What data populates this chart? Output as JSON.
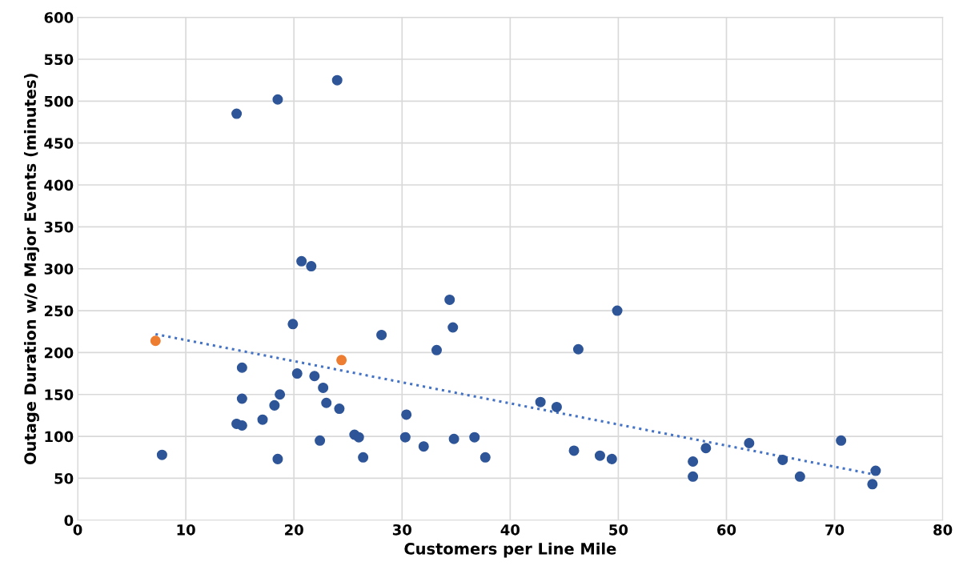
{
  "chart_data": {
    "type": "scatter",
    "xlabel": "Customers per Line Mile",
    "ylabel": "Outage Duration w/o Major Events (minutes)",
    "xlim": [
      0,
      80
    ],
    "xticks": [
      0,
      10,
      20,
      30,
      40,
      50,
      60,
      70,
      80
    ],
    "ylim": [
      0,
      600
    ],
    "yticks": [
      0,
      50,
      100,
      150,
      200,
      250,
      300,
      350,
      400,
      450,
      500,
      550,
      600
    ],
    "grid": true,
    "legend": false,
    "marker": "circle",
    "series": [
      {
        "color": "#2e5597",
        "x": [
          7.8,
          14.7,
          18.5,
          24.0,
          14.7,
          15.2,
          15.2,
          15.2,
          17.1,
          18.2,
          18.7,
          18.5,
          19.9,
          20.3,
          20.7,
          21.6,
          21.9,
          22.7,
          23.0,
          22.4,
          24.2,
          25.6,
          26.0,
          26.4,
          28.1,
          30.3,
          30.4,
          32.0,
          33.2,
          34.4,
          34.7,
          34.8,
          36.7,
          37.7,
          42.8,
          44.3,
          46.3,
          45.9,
          48.3,
          49.4,
          49.9,
          56.9,
          56.9,
          58.1,
          62.1,
          65.2,
          66.8,
          70.6,
          73.5,
          73.8
        ],
        "values": [
          78,
          485,
          502,
          525,
          115,
          113,
          145,
          182,
          120,
          137,
          150,
          73,
          234,
          175,
          309,
          303,
          172,
          158,
          140,
          95,
          133,
          102,
          99,
          75,
          221,
          99,
          126,
          88,
          203,
          263,
          230,
          97,
          99,
          75,
          141,
          135,
          204,
          83,
          77,
          73,
          250,
          70,
          52,
          86,
          92,
          72,
          52,
          95,
          43,
          59
        ]
      },
      {
        "color": "#ed7d31",
        "x": [
          7.2,
          24.4
        ],
        "values": [
          214,
          191
        ]
      },
      {
        "type": "line",
        "color": "#4472c4",
        "marker": "none",
        "line_style": "dotted",
        "x": [
          7.2,
          73.5
        ],
        "values": [
          222,
          55
        ]
      }
    ]
  }
}
